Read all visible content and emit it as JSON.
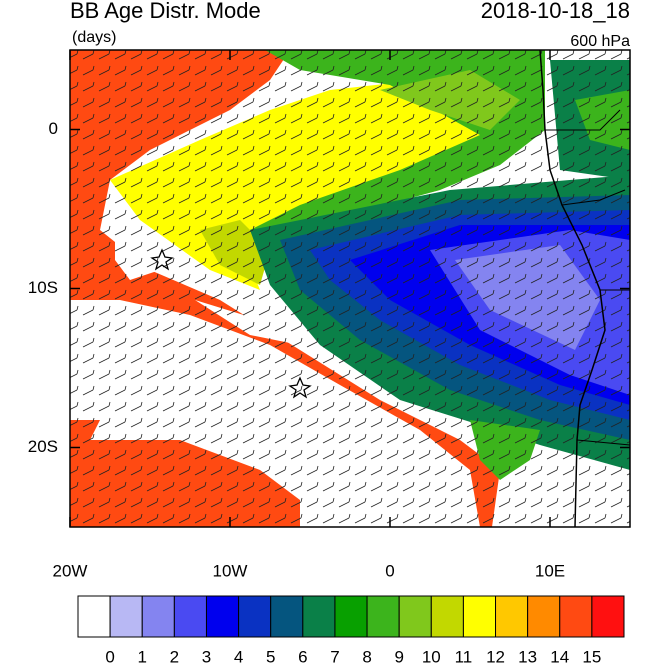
{
  "header": {
    "title": "BB Age Distr. Mode",
    "units": "(days)",
    "time": "2018-10-18_18",
    "level": "600 hPa"
  },
  "map": {
    "lonlim": [
      -20,
      15
    ],
    "latlim": [
      -25,
      5
    ],
    "lat_ticks": [
      {
        "value": 0,
        "label": "0"
      },
      {
        "value": -10,
        "label": "10S"
      },
      {
        "value": -20,
        "label": "20S"
      }
    ],
    "lon_ticks": [
      {
        "value": -20,
        "label": "20W"
      },
      {
        "value": -10,
        "label": "10W"
      },
      {
        "value": 0,
        "label": "0"
      },
      {
        "value": 10,
        "label": "10E"
      }
    ]
  },
  "colorbar": {
    "labels": [
      0,
      1,
      2,
      3,
      4,
      5,
      6,
      7,
      8,
      9,
      10,
      11,
      12,
      13,
      14,
      15
    ],
    "colors": [
      "#ffffff",
      "#b8b8f4",
      "#8484f0",
      "#4a4af2",
      "#0000ee",
      "#0a32c2",
      "#05557f",
      "#0a8048",
      "#08a000",
      "#3cb41c",
      "#80c81c",
      "#c2d800",
      "#ffff00",
      "#ffc800",
      "#ff8a00",
      "#ff4a12",
      "#ff1010"
    ]
  }
}
